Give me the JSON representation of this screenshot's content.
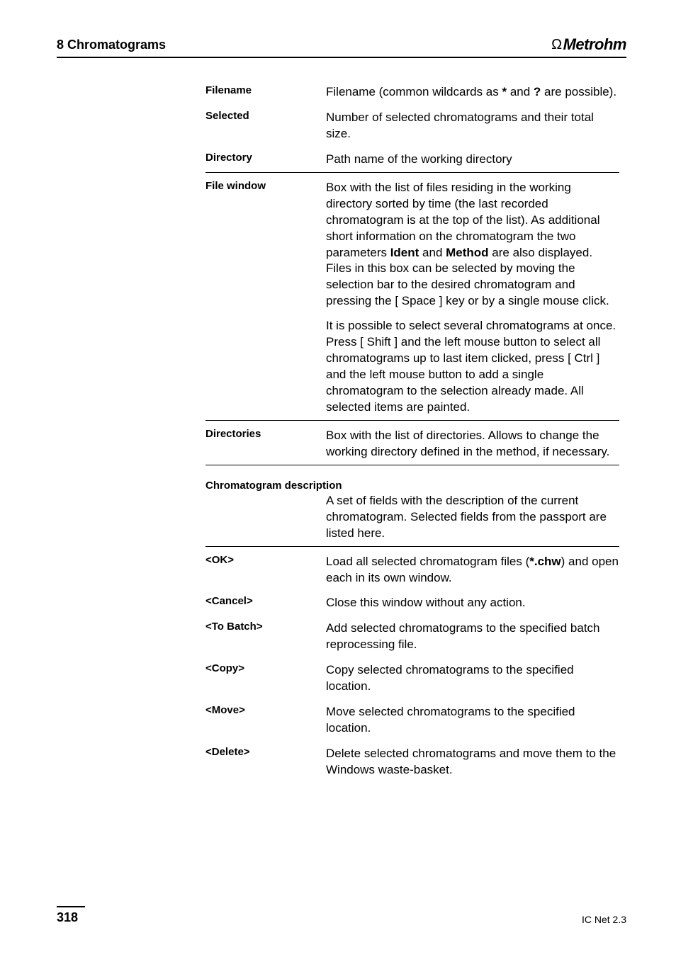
{
  "header": {
    "section": "8  Chromatograms",
    "brand": "Metrohm"
  },
  "rows": [
    {
      "term": "Filename",
      "desc": "Filename (common wildcards as <span class=\"bold\">*</span> and <span class=\"bold\">?</span> are possible).",
      "divider": false
    },
    {
      "term": "Selected",
      "desc": "Number of selected chromatograms and their total size.",
      "divider": false
    },
    {
      "term": "Directory",
      "desc": "Path name of the working directory",
      "divider": false
    },
    {
      "term": "File window",
      "desc": "<p>Box with the list of files residing in the working directory sorted by time (the last recorded chromatogram is at the top of the list). As additional short information on the chromatogram the two parameters <span class=\"bold\">Ident</span> and <span class=\"bold\">Method</span> are also displayed. Files in this box can be selected by moving the selection bar to the desired chromatogram and pressing the [ Space ] key or by a single mouse click.</p><p>It is possible to select several chromatograms at once. Press [ Shift ] and the left mouse button to select all chromatograms up to last item clicked, press [ Ctrl ] and the left mouse button to add a single chromatogram to the selection already made. All selected items are painted.</p>",
      "divider": true
    },
    {
      "term": "Directories",
      "desc": "Box with the list of directories. Allows to change the working directory defined in the method, if necessary.",
      "divider": true
    },
    {
      "span_header": "Chromatogram description",
      "desc": "A set of fields with the description of the current chromatogram. Selected fields from the passport are listed here.",
      "divider": true
    },
    {
      "term": "<OK>",
      "desc": "Load all selected chromatogram files (<span class=\"bold\">*.chw</span>) and open each in its own window.",
      "divider": true
    },
    {
      "term": "<Cancel>",
      "desc": "Close this window without any action.",
      "divider": false
    },
    {
      "term": "<To Batch>",
      "desc": "Add selected chromatograms to the specified batch reprocessing file.",
      "divider": false
    },
    {
      "term": "<Copy>",
      "desc": "Copy selected chromatograms to the specified location.",
      "divider": false
    },
    {
      "term": "<Move>",
      "desc": "Move selected chromatograms to the specified location.",
      "divider": false
    },
    {
      "term": "<Delete>",
      "desc": "Delete selected chromatograms and move them to the Windows waste-basket.",
      "divider": false
    }
  ],
  "footer": {
    "page": "318",
    "right": "IC Net 2.3"
  }
}
